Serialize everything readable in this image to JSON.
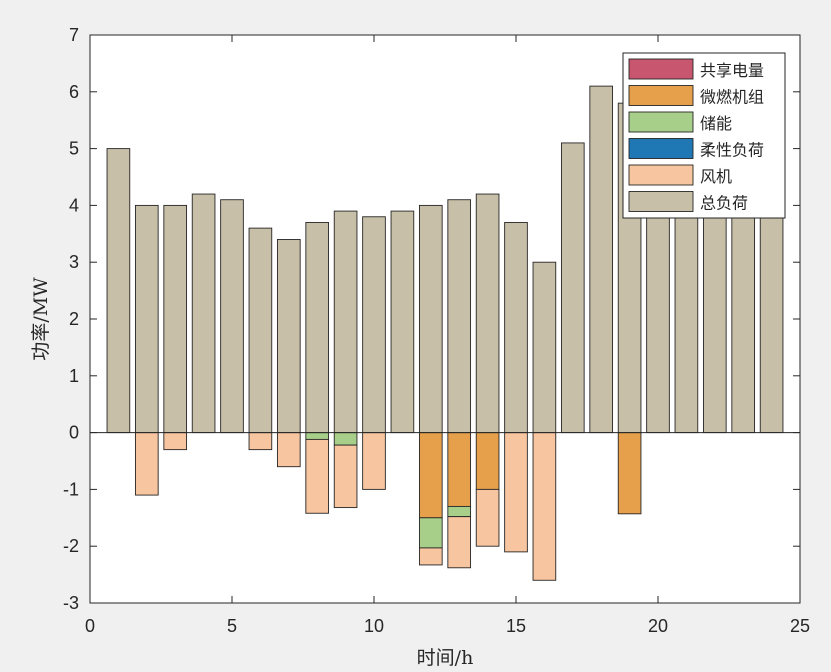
{
  "chart_data": {
    "type": "bar",
    "stacked": true,
    "xlabel": "时间/h",
    "ylabel": "功率/MW",
    "xlim": [
      0,
      25
    ],
    "ylim": [
      -3,
      7
    ],
    "xticks": [
      0,
      5,
      10,
      15,
      20,
      25
    ],
    "yticks": [
      -3,
      -2,
      -1,
      0,
      1,
      2,
      3,
      4,
      5,
      6,
      7
    ],
    "grid": false,
    "legend_position": "top-right",
    "x": [
      1,
      2,
      3,
      4,
      5,
      6,
      7,
      8,
      9,
      10,
      11,
      12,
      13,
      14,
      15,
      16,
      17,
      18,
      19,
      20,
      21,
      22,
      23,
      24
    ],
    "series": [
      {
        "name": "共享电量",
        "color": "#c8566f",
        "values": [
          0,
          0,
          0,
          0,
          0,
          0,
          0,
          0,
          0,
          0,
          0,
          0,
          0,
          0,
          0,
          0,
          0,
          0,
          0,
          0,
          0,
          0,
          0,
          0
        ]
      },
      {
        "name": "微燃机组",
        "color": "#e6a04b",
        "values": [
          0,
          0,
          0,
          0,
          0,
          0,
          0,
          0,
          0,
          0,
          0,
          -1.5,
          -1.3,
          -1.0,
          0,
          0,
          0,
          0,
          -1.43,
          0,
          0,
          0,
          0,
          0
        ]
      },
      {
        "name": "储能",
        "color": "#a8cf8a",
        "values": [
          0,
          0,
          0,
          0,
          0,
          0,
          0,
          -0.12,
          -0.22,
          0,
          0,
          -0.53,
          -0.18,
          0,
          0,
          0,
          0,
          0,
          0,
          0,
          0,
          0,
          0,
          0
        ]
      },
      {
        "name": "柔性负荷",
        "color": "#1f78b4",
        "values": [
          0,
          0,
          0,
          0,
          0,
          0,
          0,
          0,
          0,
          0,
          0,
          0,
          0,
          0,
          0,
          0,
          0,
          0,
          0,
          0,
          0,
          0,
          0,
          0
        ]
      },
      {
        "name": "风机",
        "color": "#f7c59f",
        "values": [
          0,
          -1.1,
          -0.3,
          0,
          0,
          -0.3,
          -0.6,
          -1.3,
          -1.1,
          -1.0,
          0,
          -0.3,
          -0.9,
          -1.0,
          -2.1,
          -2.6,
          0,
          0,
          0,
          0,
          0,
          0,
          0,
          0
        ]
      },
      {
        "name": "总负荷",
        "color": "#c8bfa8",
        "values": [
          5.0,
          4.0,
          4.0,
          4.2,
          4.1,
          3.6,
          3.4,
          3.7,
          3.9,
          3.8,
          3.9,
          4.0,
          4.1,
          4.2,
          3.7,
          3.0,
          5.1,
          6.1,
          5.8,
          4.6,
          4.2,
          4.0,
          4.3,
          4.0
        ]
      }
    ]
  }
}
